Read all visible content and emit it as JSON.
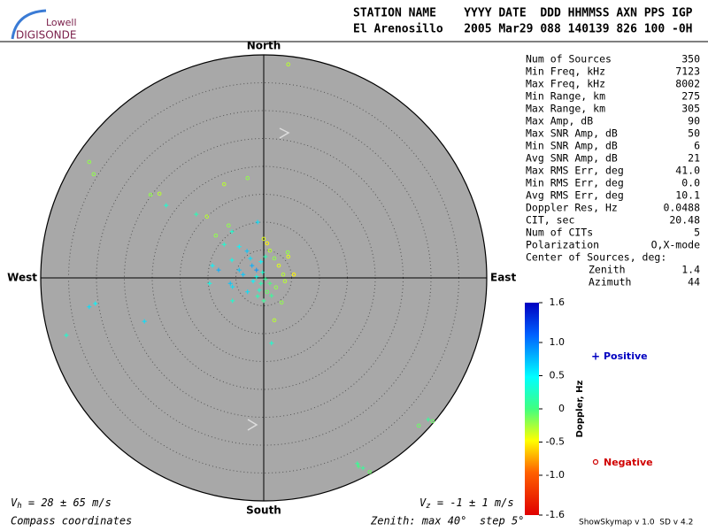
{
  "header": {
    "logo_top": "Lowell",
    "logo_bottom": "DIGISONDE",
    "columns": "STATION NAME    YYYY DATE  DDD HHMMSS AXN PPS IGP",
    "values": "El Arenosillo   2005 Mar29 088 140139 826 100 -0H"
  },
  "chart_data": {
    "type": "skymap",
    "directions": {
      "north": "North",
      "south": "South",
      "east": "East",
      "west": "West"
    },
    "rlim": [
      0,
      40
    ],
    "rticks": [
      5,
      10,
      15,
      20,
      25,
      30,
      35,
      40
    ],
    "points": {
      "x": [
        4.4,
        -31.3,
        -30.5,
        -20.3,
        -18.7,
        -17.5,
        -12.1,
        -10.2,
        -2.9,
        -7.1,
        -31.3,
        -30.2,
        -35.4,
        -21.4,
        1.4,
        1.9,
        3.2,
        27.8,
        29.5,
        30.3,
        17.0,
        17.8,
        19.0,
        16.8,
        -1.1,
        -8.6,
        -5.7,
        -6.3,
        -7.1,
        -4.4,
        -5.7,
        -3.0,
        -9.2,
        -8.1,
        -6.0,
        -5.6,
        -9.7,
        -5.6,
        -2.9,
        -2.1,
        -1.3,
        -0.5,
        0.3,
        0,
        0.6,
        1.1,
        1.9,
        2.7,
        3.5,
        4.4,
        5.4,
        4.3,
        0.3,
        1.1,
        -0.5,
        -1.3,
        0.6,
        1.4,
        -0.8,
        -3.7,
        -2.4,
        0,
        -1.1,
        2.2,
        3.8,
        -1.9,
        -4.4,
        -0.2
      ],
      "y": [
        38.3,
        20.8,
        18.6,
        14.9,
        15.1,
        13.0,
        11.4,
        11.0,
        17.9,
        16.8,
        -5.2,
        -4.6,
        -10.3,
        -7.8,
        -11.7,
        -7.6,
        -4.4,
        -26.5,
        -25.4,
        -25.7,
        -33.8,
        -34.1,
        -34.8,
        -33.3,
        10.0,
        7.6,
        8.3,
        9.4,
        6.0,
        5.6,
        3.2,
        4.8,
        2.2,
        1.4,
        -1.0,
        -1.6,
        -1.0,
        -4.1,
        -2.5,
        2.2,
        1.4,
        2.9,
        3.8,
        7.0,
        6.2,
        4.9,
        3.5,
        2.2,
        0.6,
        3.8,
        0.6,
        4.6,
        -0.2,
        -1.0,
        -1.0,
        0.2,
        -2.5,
        -3.2,
        -2.2,
        0.6,
        3.5,
        -4.1,
        -3.3,
        -1.7,
        -0.6,
        -0.6,
        1.4,
        1.0
      ],
      "doppler": [
        -0.3,
        -0.2,
        -0.2,
        -0.2,
        -0.3,
        0.3,
        0.2,
        -0.3,
        -0.2,
        -0.3,
        0.6,
        0.5,
        0.3,
        0.6,
        0.3,
        -0.3,
        -0.2,
        -0.1,
        0.1,
        -0.1,
        0,
        0.1,
        -0.1,
        0.1,
        0.6,
        -0.2,
        0.3,
        -0.2,
        0.3,
        0.5,
        0.4,
        0.7,
        0.5,
        0.8,
        0.7,
        0.6,
        0.4,
        0.3,
        0.6,
        0.8,
        0.9,
        0.5,
        0.2,
        -0.4,
        -0.5,
        -0.3,
        -0.2,
        -0.4,
        -0.3,
        -0.4,
        -0.5,
        -0.2,
        0.1,
        0,
        0.2,
        0.4,
        -0.1,
        0.1,
        0.3,
        0.7,
        0.6,
        0.1,
        0.2,
        -0.2,
        -0.3,
        0.5,
        0.7,
        0.3
      ]
    },
    "colorbar": {
      "label": "Doppler, Hz",
      "lim": [
        -1.6,
        1.6
      ],
      "ticks": [
        1.6,
        {
          "value": 1,
          "label": "1.0"
        },
        0.5,
        0,
        -0.5,
        {
          "value": -1,
          "label": "-1.0"
        },
        -1.6
      ]
    },
    "legend": {
      "positive": "Positive",
      "negative": "Negative",
      "positive_color": "#0000c0",
      "negative_color": "#d00000"
    }
  },
  "stats": {
    "rows": [
      [
        "Num of Sources",
        "350"
      ],
      [
        "Min Freq, kHz",
        "7123"
      ],
      [
        "Max Freq, kHz",
        "8002"
      ],
      [
        "Min Range, km",
        "275"
      ],
      [
        "Max Range, km",
        "305"
      ],
      [
        "Max Amp, dB",
        "90"
      ],
      [
        "Max SNR Amp, dB",
        "50"
      ],
      [
        "Min SNR Amp, dB",
        "6"
      ],
      [
        "Avg SNR Amp, dB",
        "21"
      ],
      [
        "Max RMS Err, deg",
        "41.0"
      ],
      [
        "Min RMS Err, deg",
        "0.0"
      ],
      [
        "Avg RMS Err, deg",
        "10.1"
      ],
      [
        "Doppler Res, Hz",
        "0.0488"
      ],
      [
        "CIT, sec",
        "20.48"
      ],
      [
        "Num of CITs",
        "5"
      ],
      [
        "Polarization",
        "O,X-mode"
      ]
    ],
    "center_title": "Center of Sources, deg:",
    "center_rows": [
      [
        "Zenith",
        "1.4"
      ],
      [
        "Azimuth",
        "44"
      ]
    ]
  },
  "footer": {
    "vh": {
      "symbol": "V",
      "sub": "h",
      "rest": " = 28 ± 65 m/s"
    },
    "vz": {
      "symbol": "V",
      "sub": "z",
      "rest": " = -1 ± 1 m/s"
    },
    "coords": "Compass coordinates",
    "zenith": "Zenith: max 40°  step 5°",
    "version": "ShowSkymap v 1.0  SD v 4.2"
  }
}
